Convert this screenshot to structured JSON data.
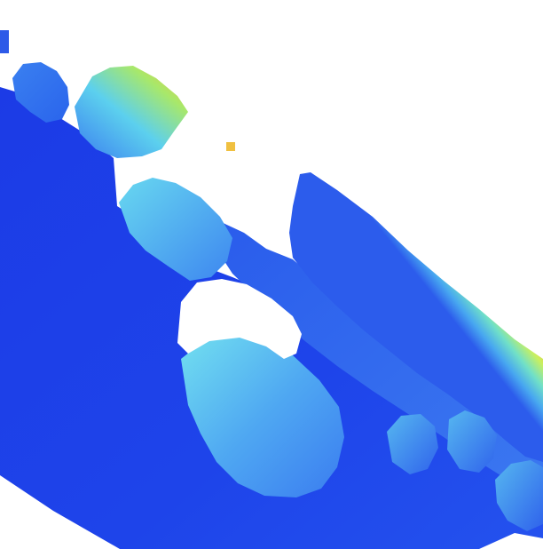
{
  "image": {
    "kind": "depth-map",
    "colormap": "jet",
    "colors": {
      "background": "#ffffff",
      "near": "#1f3fe8",
      "mid": "#6fd4f2",
      "far": "#e8401c"
    },
    "regions": [
      {
        "name": "ground-plane"
      },
      {
        "name": "object-top-left-small"
      },
      {
        "name": "object-top-left-large"
      },
      {
        "name": "object-center"
      },
      {
        "name": "object-center-large"
      },
      {
        "name": "far-ridge"
      },
      {
        "name": "object-bottom-right-a"
      },
      {
        "name": "object-bottom-right-b"
      },
      {
        "name": "object-bottom-right-c"
      }
    ]
  }
}
